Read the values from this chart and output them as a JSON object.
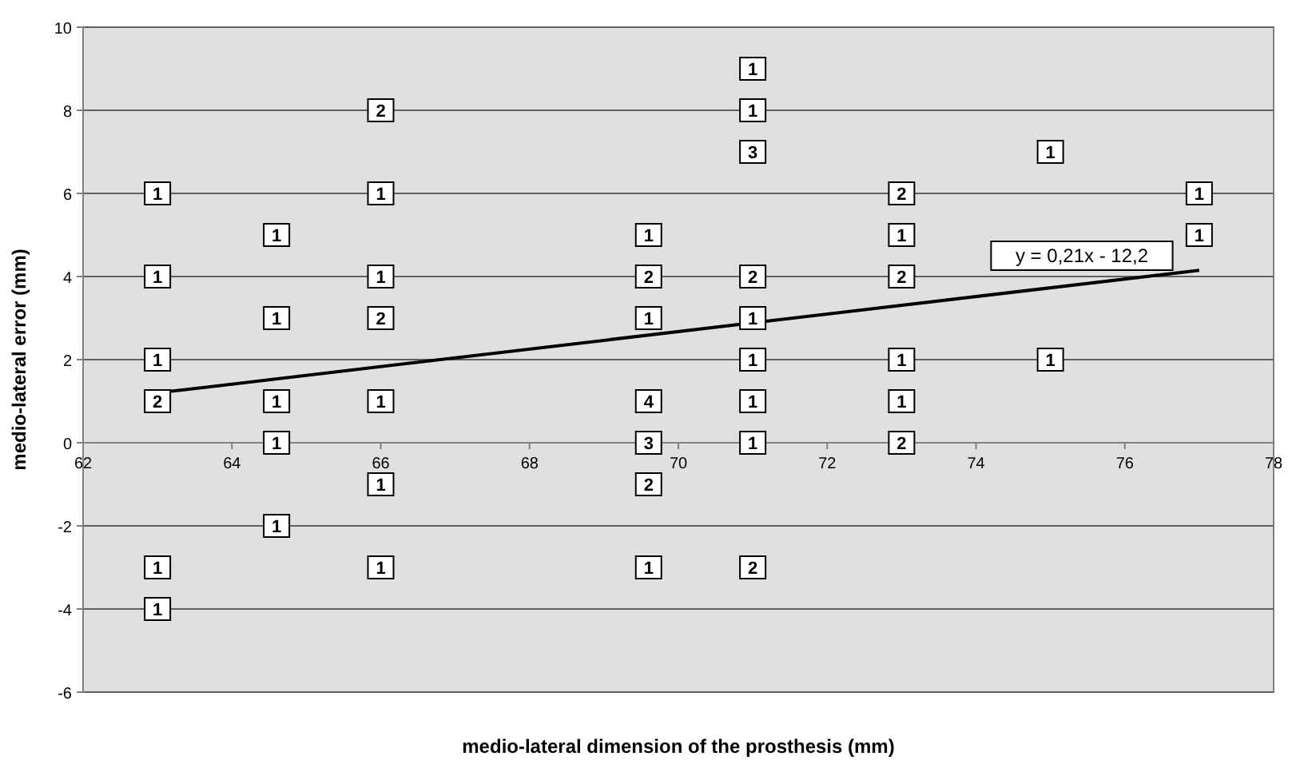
{
  "chart_data": {
    "type": "scatter",
    "xlabel": "medio-lateral dimension of the prosthesis (mm)",
    "ylabel": "medio-lateral error (mm)",
    "xlim": [
      62,
      78
    ],
    "xticks": [
      62,
      64,
      66,
      68,
      70,
      72,
      74,
      76,
      78
    ],
    "ylim": [
      -6,
      10
    ],
    "yticks": [
      -6,
      -4,
      -2,
      0,
      2,
      4,
      6,
      8,
      10
    ],
    "grid": "y",
    "series": [
      {
        "marker": "square",
        "color": "#000000",
        "x": [
          63,
          63,
          63,
          63,
          63,
          63,
          64.6,
          64.6,
          64.6,
          64.6,
          64.6,
          66,
          66,
          66,
          66,
          66,
          66,
          66,
          69.6,
          69.6,
          69.6,
          69.6,
          69.6,
          69.6,
          69.6,
          71,
          71,
          71,
          71,
          71,
          71,
          71,
          71,
          71,
          73,
          73,
          73,
          73,
          73,
          73,
          75,
          75,
          77,
          77
        ],
        "values": [
          6,
          4,
          2,
          1,
          -3,
          -4,
          5,
          3,
          1,
          0,
          -2,
          8,
          6,
          4,
          3,
          1,
          -1,
          -3,
          5,
          4,
          3,
          1,
          0,
          -1,
          -3,
          9,
          8,
          7,
          4,
          3,
          2,
          1,
          0,
          -3,
          6,
          5,
          4,
          2,
          1,
          0,
          7,
          2,
          6,
          5
        ]
      },
      {
        "type": "line",
        "color": "#000000",
        "x": [
          63,
          77
        ],
        "values": [
          1.2,
          4.15
        ]
      }
    ],
    "annotations": [
      "y = 0,21x - 12,2",
      {
        "text": "1",
        "x": 63,
        "y": 6
      },
      {
        "text": "1",
        "x": 63,
        "y": 4
      },
      {
        "text": "1",
        "x": 63,
        "y": 2
      },
      {
        "text": "2",
        "x": 63,
        "y": 1
      },
      {
        "text": "1",
        "x": 63,
        "y": -3
      },
      {
        "text": "1",
        "x": 63,
        "y": -4
      },
      {
        "text": "1",
        "x": 64.6,
        "y": 5
      },
      {
        "text": "1",
        "x": 64.6,
        "y": 3
      },
      {
        "text": "1",
        "x": 64.6,
        "y": 1
      },
      {
        "text": "1",
        "x": 64.6,
        "y": 0
      },
      {
        "text": "1",
        "x": 64.6,
        "y": -2
      },
      {
        "text": "2",
        "x": 66,
        "y": 8
      },
      {
        "text": "1",
        "x": 66,
        "y": 6
      },
      {
        "text": "1",
        "x": 66,
        "y": 4
      },
      {
        "text": "2",
        "x": 66,
        "y": 3
      },
      {
        "text": "1",
        "x": 66,
        "y": 1
      },
      {
        "text": "1",
        "x": 66,
        "y": -1
      },
      {
        "text": "1",
        "x": 66,
        "y": -3
      },
      {
        "text": "1",
        "x": 69.6,
        "y": 5
      },
      {
        "text": "2",
        "x": 69.6,
        "y": 4
      },
      {
        "text": "1",
        "x": 69.6,
        "y": 3
      },
      {
        "text": "4",
        "x": 69.6,
        "y": 1
      },
      {
        "text": "3",
        "x": 69.6,
        "y": 0
      },
      {
        "text": "2",
        "x": 69.6,
        "y": -1
      },
      {
        "text": "1",
        "x": 69.6,
        "y": -3
      },
      {
        "text": "1",
        "x": 71,
        "y": 9
      },
      {
        "text": "1",
        "x": 71,
        "y": 8
      },
      {
        "text": "3",
        "x": 71,
        "y": 7
      },
      {
        "text": "2",
        "x": 71,
        "y": 4
      },
      {
        "text": "1",
        "x": 71,
        "y": 3
      },
      {
        "text": "1",
        "x": 71,
        "y": 2
      },
      {
        "text": "1",
        "x": 71,
        "y": 1
      },
      {
        "text": "1",
        "x": 71,
        "y": 0
      },
      {
        "text": "2",
        "x": 71,
        "y": -3
      },
      {
        "text": "2",
        "x": 73,
        "y": 6
      },
      {
        "text": "1",
        "x": 73,
        "y": 5
      },
      {
        "text": "2",
        "x": 73,
        "y": 4
      },
      {
        "text": "1",
        "x": 73,
        "y": 2
      },
      {
        "text": "1",
        "x": 73,
        "y": 1
      },
      {
        "text": "2",
        "x": 73,
        "y": 0
      },
      {
        "text": "1",
        "x": 75,
        "y": 7
      },
      {
        "text": "1",
        "x": 75,
        "y": 2
      },
      {
        "text": "1",
        "x": 77,
        "y": 6
      },
      {
        "text": "1",
        "x": 77,
        "y": 5
      }
    ]
  }
}
